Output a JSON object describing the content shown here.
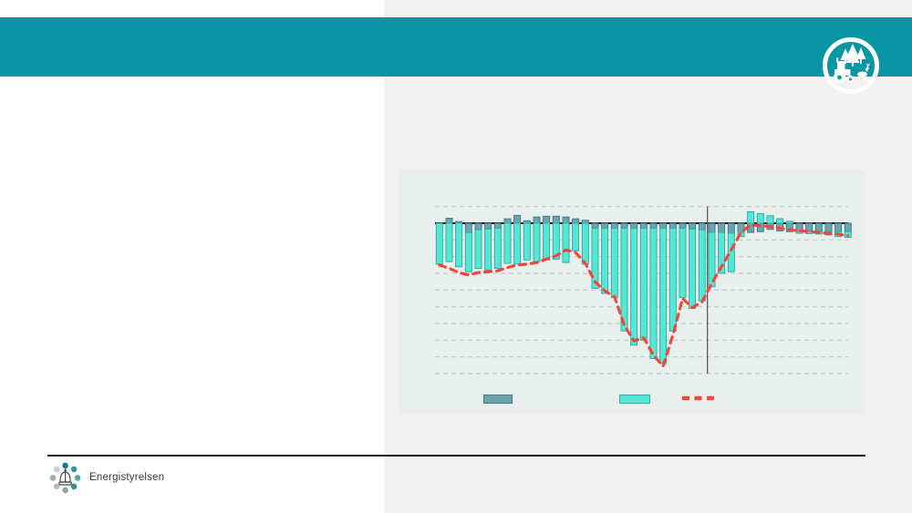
{
  "header": {
    "icon": "tractor-trees-animals-emblem"
  },
  "footer": {
    "logo_text": "Energistyrelsen",
    "logo_dot_colors": [
      "#0c7e8c",
      "#36929b",
      "#5fa3a9",
      "#2d8f99",
      "#97a1a4",
      "#b4bcbe",
      "#a3adb0",
      "#c6cdd0"
    ]
  },
  "colors": {
    "band_teal": "#0996a4",
    "page_bg_right": "#f1f2f1",
    "left_panel_bg": "#ffffff",
    "chart_panel_bg": "#e9efec",
    "bar_teal_fill": "#56e6d6",
    "bar_teal_border": "#2ab3a9",
    "bar_dark_fill": "#6ba3af",
    "bar_dark_border": "#3f7e8b",
    "line_red": "#f4463d",
    "zero_line": "#141414",
    "gridline": "#c6cac9",
    "marker_line": "#555555",
    "footer_line": "#141414",
    "logo_text_color": "#3d3d3d"
  },
  "chart_data": {
    "type": "bar",
    "subtype": "stacked-bars-with-dashed-line-overlay",
    "title": "",
    "xlabel": "",
    "ylabel": "",
    "axis_text_visible": false,
    "x_count": 43,
    "ylim": [
      -9,
      1
    ],
    "gridlines": "horizontal dashed, 1 unit apart, zero line solid black",
    "marker_vline_between_bars": [
      28,
      29
    ],
    "legend": {
      "position": "bottom",
      "labels_visible": false,
      "entries": [
        "dark-teal-bar-series",
        "turquoise-bar-series",
        "red-dashed-line-series"
      ]
    },
    "series": [
      {
        "name": "dark-teal-bars",
        "type": "bar",
        "values": [
          0,
          0.3,
          0.1,
          -0.55,
          -0.4,
          -0.35,
          -0.3,
          0.26,
          0.47,
          0.15,
          0.37,
          0.42,
          0.42,
          0.37,
          0.26,
          0.18,
          -0.3,
          -0.3,
          -0.3,
          -0.3,
          -0.3,
          -0.3,
          -0.3,
          -0.3,
          -0.3,
          -0.3,
          -0.35,
          -0.4,
          -0.55,
          -0.55,
          -0.6,
          -0.55,
          -0.55,
          -0.5,
          -0.37,
          -0.46,
          -0.5,
          -0.5,
          -0.5,
          -0.5,
          -0.5,
          -0.5,
          -0.5
        ]
      },
      {
        "name": "turquoise-bars",
        "type": "bar",
        "values": [
          -2.45,
          -2.3,
          -2.6,
          -2.35,
          -2.3,
          -2.45,
          -2.4,
          -2.4,
          -2.45,
          -2.2,
          -2.3,
          -2.2,
          -2.15,
          -2.35,
          -1.65,
          -2.45,
          -3.6,
          -3.9,
          -4.15,
          -6.15,
          -7.0,
          -6.7,
          -7.8,
          -8.1,
          -6.15,
          -4.15,
          -4.75,
          -4.25,
          -3.25,
          -2.45,
          -2.3,
          -0.25,
          0.69,
          0.58,
          0.45,
          0.27,
          0.12,
          -0.1,
          -0.12,
          -0.15,
          -0.2,
          -0.3,
          -0.35
        ]
      },
      {
        "name": "red-dashed-line",
        "type": "line",
        "values": [
          -2.5,
          -2.7,
          -2.95,
          -3.1,
          -2.95,
          -2.9,
          -2.85,
          -2.65,
          -2.5,
          -2.45,
          -2.35,
          -2.15,
          -1.95,
          -1.6,
          -1.75,
          -2.4,
          -3.5,
          -4.05,
          -4.4,
          -6.1,
          -7.05,
          -6.85,
          -7.9,
          -8.55,
          -6.7,
          -4.5,
          -5.05,
          -4.7,
          -3.6,
          -2.6,
          -1.6,
          -0.55,
          -0.1,
          -0.15,
          -0.2,
          -0.3,
          -0.4,
          -0.45,
          -0.5,
          -0.55,
          -0.6,
          -0.65,
          -0.75
        ]
      }
    ]
  }
}
